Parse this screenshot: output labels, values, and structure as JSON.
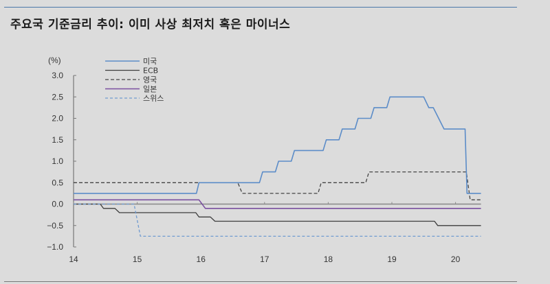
{
  "header": {
    "title": "주요국 기준금리 추이: 이미 사상 최저치 혹은 마이너스"
  },
  "chart_data": {
    "type": "line",
    "title": "주요국 기준금리 추이: 이미 사상 최저치 혹은 마이너스",
    "ylabel": "(%)",
    "xlabel": "",
    "ylim": [
      -1.0,
      3.0
    ],
    "xlim": [
      14,
      20.4
    ],
    "yticks": [
      "3.0",
      "2.5",
      "2.0",
      "1.5",
      "1.0",
      "0.5",
      "0.0",
      "-0.5",
      "-1.0"
    ],
    "xticks": [
      "14",
      "15",
      "16",
      "17",
      "18",
      "19",
      "20"
    ],
    "grid": false,
    "legend_position": "upper-left",
    "series": [
      {
        "name": "미국",
        "color": "#5b8cc8",
        "dash": "none",
        "width": 1.6,
        "points": [
          [
            14.0,
            0.25
          ],
          [
            15.93,
            0.25
          ],
          [
            15.97,
            0.5
          ],
          [
            16.92,
            0.5
          ],
          [
            16.97,
            0.75
          ],
          [
            17.17,
            0.75
          ],
          [
            17.22,
            1.0
          ],
          [
            17.42,
            1.0
          ],
          [
            17.47,
            1.25
          ],
          [
            17.92,
            1.25
          ],
          [
            17.97,
            1.5
          ],
          [
            18.17,
            1.5
          ],
          [
            18.22,
            1.75
          ],
          [
            18.42,
            1.75
          ],
          [
            18.47,
            2.0
          ],
          [
            18.67,
            2.0
          ],
          [
            18.72,
            2.25
          ],
          [
            18.92,
            2.25
          ],
          [
            18.97,
            2.5
          ],
          [
            19.5,
            2.5
          ],
          [
            19.58,
            2.25
          ],
          [
            19.65,
            2.25
          ],
          [
            19.82,
            1.75
          ],
          [
            20.15,
            1.75
          ],
          [
            20.18,
            0.25
          ],
          [
            20.4,
            0.25
          ]
        ]
      },
      {
        "name": "ECB",
        "color": "#3c3c3c",
        "dash": "none",
        "width": 1.3,
        "points": [
          [
            14.0,
            0.0
          ],
          [
            14.42,
            0.0
          ],
          [
            14.47,
            -0.1
          ],
          [
            14.65,
            -0.1
          ],
          [
            14.72,
            -0.2
          ],
          [
            15.92,
            -0.2
          ],
          [
            15.97,
            -0.3
          ],
          [
            16.15,
            -0.3
          ],
          [
            16.22,
            -0.4
          ],
          [
            19.67,
            -0.4
          ],
          [
            19.72,
            -0.5
          ],
          [
            20.4,
            -0.5
          ]
        ]
      },
      {
        "name": "영국",
        "color": "#444444",
        "dash": "5,3",
        "width": 1.3,
        "points": [
          [
            14.0,
            0.5
          ],
          [
            16.58,
            0.5
          ],
          [
            16.65,
            0.25
          ],
          [
            17.84,
            0.25
          ],
          [
            17.89,
            0.5
          ],
          [
            18.59,
            0.5
          ],
          [
            18.64,
            0.75
          ],
          [
            20.17,
            0.75
          ],
          [
            20.23,
            0.1
          ],
          [
            20.4,
            0.1
          ]
        ]
      },
      {
        "name": "일본",
        "color": "#7a4fa0",
        "dash": "none",
        "width": 1.6,
        "points": [
          [
            14.0,
            0.1
          ],
          [
            15.97,
            0.1
          ],
          [
            16.07,
            -0.1
          ],
          [
            20.4,
            -0.1
          ]
        ]
      },
      {
        "name": "스위스",
        "color": "#6f9ad0",
        "dash": "4,3",
        "width": 1.3,
        "points": [
          [
            14.0,
            0.0
          ],
          [
            14.95,
            0.0
          ],
          [
            15.05,
            -0.75
          ],
          [
            20.4,
            -0.75
          ]
        ]
      }
    ]
  }
}
